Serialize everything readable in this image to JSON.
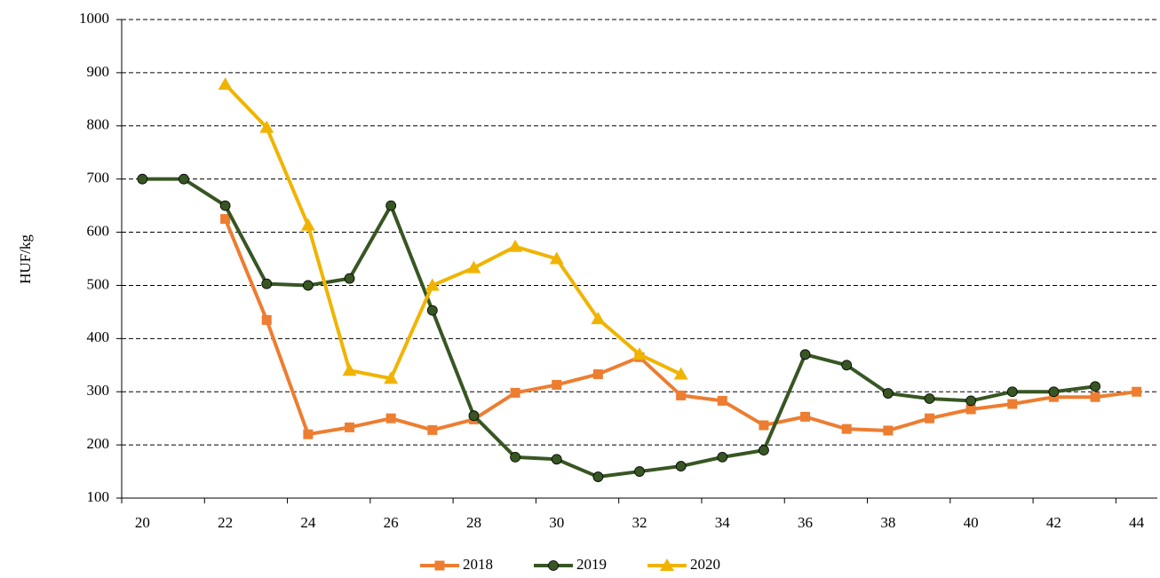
{
  "chart_data": {
    "type": "line",
    "y_label": "HUF/kg",
    "categories": [
      20,
      null,
      22,
      null,
      24,
      null,
      26,
      null,
      28,
      null,
      30,
      null,
      32,
      null,
      34,
      null,
      36,
      null,
      38,
      null,
      40,
      null,
      42,
      null,
      44
    ],
    "series": [
      {
        "name": "2018",
        "color": "#ed7d31",
        "marker": "square",
        "values": [
          null,
          null,
          625,
          435,
          220,
          233,
          250,
          228,
          248,
          298,
          313,
          333,
          365,
          293,
          283,
          237,
          253,
          230,
          227,
          250,
          267,
          277,
          290,
          290,
          300
        ]
      },
      {
        "name": "2019",
        "color": "#375623",
        "marker": "circle",
        "values": [
          700,
          700,
          650,
          503,
          500,
          513,
          650,
          453,
          255,
          177,
          173,
          140,
          150,
          160,
          177,
          190,
          370,
          350,
          297,
          287,
          283,
          300,
          300,
          310,
          null
        ]
      },
      {
        "name": "2020",
        "color": "#f0b400",
        "marker": "triangle",
        "values": [
          null,
          null,
          878,
          797,
          613,
          340,
          325,
          500,
          533,
          573,
          550,
          437,
          370,
          333,
          null,
          null,
          null,
          null,
          null,
          null,
          null,
          null,
          null,
          null,
          null
        ]
      }
    ],
    "ylim": [
      100,
      1000
    ],
    "yticks": [
      100,
      200,
      300,
      400,
      500,
      600,
      700,
      800,
      900,
      1000
    ],
    "grid": true,
    "legend": "bottom"
  }
}
